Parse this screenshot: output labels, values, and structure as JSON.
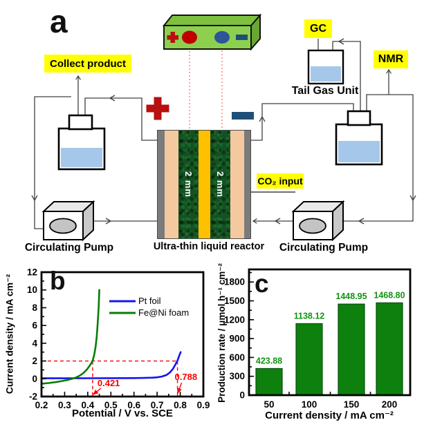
{
  "diagram": {
    "panel_label": "a",
    "labels": {
      "collect_product": "Collect product",
      "gc": "GC",
      "nmr": "NMR",
      "tail_gas_unit": "Tail Gas Unit",
      "co2_input": "CO₂ input",
      "reactor_caption": "Ultra-thin liquid reactor",
      "pump_left": "Circulating Pump",
      "pump_right": "Circulating Pump",
      "electrode_left_thickness": "2 mm",
      "electrode_right_thickness": "2 mm"
    },
    "colors": {
      "highlight_yellow": "#ffff00",
      "power_supply_green": "#8dd04f",
      "electrode_foam_green": "#145020",
      "membrane_gold": "#ffc000",
      "channel_peach": "#f5c9a0",
      "plate_gray": "#7b7b7b",
      "liquid_blue": "#a5c8ea",
      "positive_red": "#b80f0f",
      "negative_blue": "#1f4e79"
    }
  },
  "chart_data": [
    {
      "id": "b",
      "panel_label": "b",
      "type": "line",
      "xlabel": "Potential / V vs. SCE",
      "ylabel": "Current density / mA cm⁻²",
      "xlim": [
        0.2,
        0.9
      ],
      "ylim": [
        -2,
        12
      ],
      "xticks": [
        0.2,
        0.3,
        0.4,
        0.5,
        0.6,
        0.7,
        0.8,
        0.9
      ],
      "yticks": [
        -2,
        0,
        2,
        4,
        6,
        8,
        10,
        12
      ],
      "grid": false,
      "legend_position": "upper-middle-right",
      "series": [
        {
          "name": "Pt foil",
          "color": "#1414ee",
          "points": [
            [
              0.2,
              0.05
            ],
            [
              0.3,
              0.05
            ],
            [
              0.4,
              0.06
            ],
            [
              0.5,
              0.07
            ],
            [
              0.6,
              0.08
            ],
            [
              0.64,
              0.09
            ],
            [
              0.68,
              0.12
            ],
            [
              0.7,
              0.16
            ],
            [
              0.72,
              0.25
            ],
            [
              0.74,
              0.42
            ],
            [
              0.755,
              0.7
            ],
            [
              0.768,
              1.1
            ],
            [
              0.778,
              1.55
            ],
            [
              0.788,
              2.05
            ],
            [
              0.795,
              2.55
            ],
            [
              0.802,
              3.0
            ]
          ]
        },
        {
          "name": "Fe@Ni foam",
          "color": "#067d06",
          "points": [
            [
              0.2,
              -0.55
            ],
            [
              0.23,
              -0.48
            ],
            [
              0.26,
              -0.38
            ],
            [
              0.29,
              -0.25
            ],
            [
              0.31,
              -0.15
            ],
            [
              0.33,
              -0.02
            ],
            [
              0.35,
              0.15
            ],
            [
              0.365,
              0.35
            ],
            [
              0.38,
              0.62
            ],
            [
              0.395,
              1.0
            ],
            [
              0.408,
              1.45
            ],
            [
              0.421,
              2.0
            ],
            [
              0.428,
              2.7
            ],
            [
              0.434,
              3.6
            ],
            [
              0.439,
              4.8
            ],
            [
              0.443,
              6.2
            ],
            [
              0.447,
              8.0
            ],
            [
              0.45,
              10.0
            ]
          ]
        }
      ],
      "annotations": {
        "color": "#ff0000",
        "hline_y": 2,
        "vlines": [
          0.421,
          0.788
        ],
        "vline_labels": [
          "0.421",
          "0.788"
        ]
      }
    },
    {
      "id": "c",
      "panel_label": "c",
      "type": "bar",
      "xlabel": "Current density / mA cm⁻²",
      "ylabel": "Production rate / μmol h⁻¹ cm⁻²",
      "categories": [
        "50",
        "100",
        "150",
        "200"
      ],
      "values": [
        423.88,
        1138.12,
        1448.95,
        1468.8
      ],
      "value_labels": [
        "423.88",
        "1138.12",
        "1448.95",
        "1468.80"
      ],
      "bar_color": "#0d800d",
      "bar_edge_color": "#06520a",
      "value_label_color": "#129212",
      "ylim": [
        0,
        2000
      ],
      "yticks": [
        0,
        300,
        600,
        900,
        1200,
        1500,
        1800
      ],
      "grid": false
    }
  ]
}
